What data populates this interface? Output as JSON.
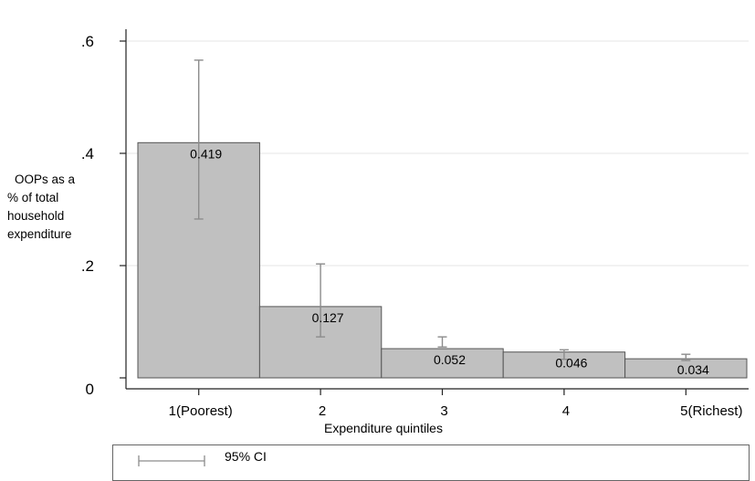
{
  "chart_data": {
    "type": "bar",
    "categories": [
      "1(Poorest)",
      "2",
      "3",
      "4",
      "5(Richest)"
    ],
    "values": [
      0.419,
      0.127,
      0.052,
      0.046,
      0.034
    ],
    "value_labels": [
      "0.419",
      "0.127",
      "0.052",
      "0.046",
      "0.034"
    ],
    "ci_lower": [
      0.283,
      0.073,
      0.055,
      0.033,
      0.031
    ],
    "ci_upper": [
      0.566,
      0.203,
      0.073,
      0.05,
      0.042
    ],
    "xlabel": "Expenditure quintiles",
    "ylabel_lines": [
      "OOPs as a",
      "% of total",
      "household",
      "expenditure"
    ],
    "ylim": [
      0,
      0.6
    ],
    "yticks": [
      0,
      0.2,
      0.4,
      0.6
    ],
    "ytick_labels": [
      "0",
      ".2",
      ".4",
      ".6"
    ],
    "grid": true,
    "legend": {
      "placement": "bottom",
      "entries": [
        "95% CI"
      ]
    },
    "colors": {
      "bar_fill": "#c0c0c0",
      "bar_stroke": "#555555",
      "error_bar": "#8c8c8c",
      "grid": "#e4e4e4",
      "axis": "#222222",
      "plot_bg": "#ffffff",
      "outer_bg": "#ffffff"
    }
  }
}
